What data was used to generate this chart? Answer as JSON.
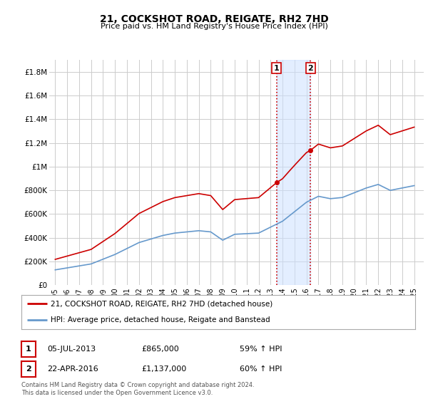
{
  "title": "21, COCKSHOT ROAD, REIGATE, RH2 7HD",
  "subtitle": "Price paid vs. HM Land Registry's House Price Index (HPI)",
  "hpi_label": "HPI: Average price, detached house, Reigate and Banstead",
  "price_label": "21, COCKSHOT ROAD, REIGATE, RH2 7HD (detached house)",
  "footer": "Contains HM Land Registry data © Crown copyright and database right 2024.\nThis data is licensed under the Open Government Licence v3.0.",
  "transaction1": {
    "date": "05-JUL-2013",
    "price": "£865,000",
    "hpi": "59% ↑ HPI",
    "year": 2013.5
  },
  "transaction2": {
    "date": "22-APR-2016",
    "price": "£1,137,000",
    "hpi": "60% ↑ HPI",
    "year": 2016.33
  },
  "ylim": [
    0,
    1900000
  ],
  "yticks": [
    0,
    200000,
    400000,
    600000,
    800000,
    1000000,
    1200000,
    1400000,
    1600000,
    1800000
  ],
  "ytick_labels": [
    "£0",
    "£200K",
    "£400K",
    "£600K",
    "£800K",
    "£1M",
    "£1.2M",
    "£1.4M",
    "£1.6M",
    "£1.8M"
  ],
  "price_color": "#cc0000",
  "hpi_color": "#6699cc",
  "vline_color": "#cc0000",
  "shade_color": "#cce0ff",
  "bg_color": "#ffffff",
  "grid_color": "#cccccc",
  "xlim_left": 1994.5,
  "xlim_right": 2025.8,
  "t1_year": 2013.5,
  "t2_year": 2016.33,
  "t1_price": 865000,
  "t2_price": 1137000
}
